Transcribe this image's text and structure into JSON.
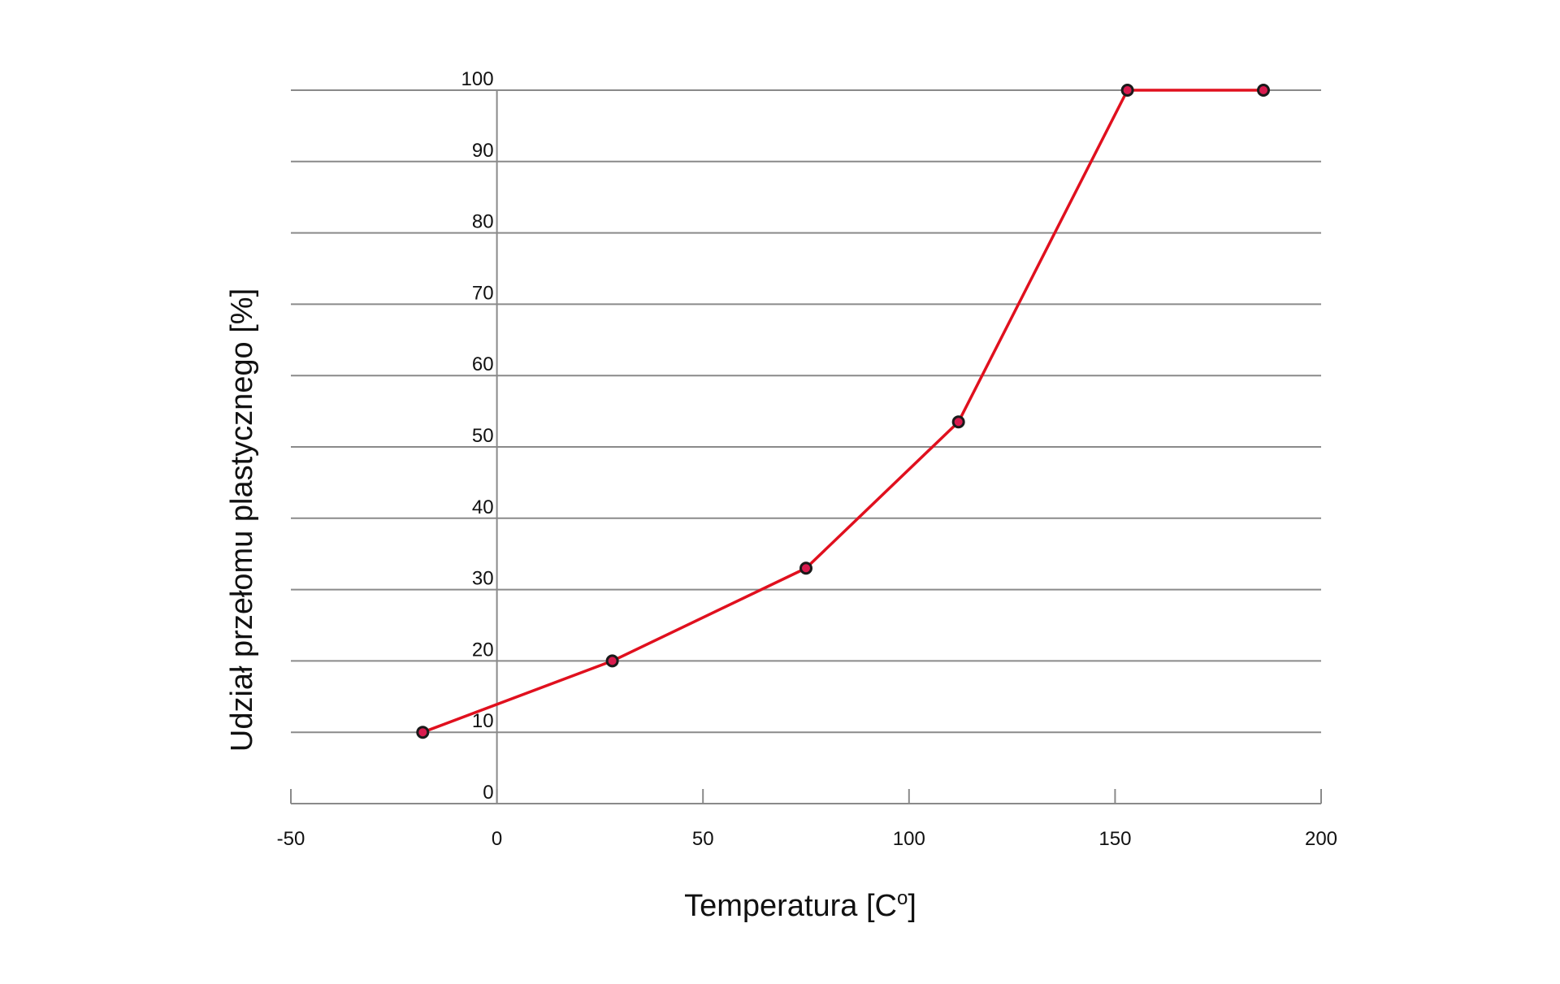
{
  "chart_data": {
    "type": "line",
    "title": "",
    "xlabel": "Temperatura [C",
    "xlabel_sup": "o",
    "xlabel_close": "]",
    "ylabel": "Udział przełomu plastycznego [%]",
    "xlim": [
      -50,
      200
    ],
    "ylim": [
      0,
      100
    ],
    "x_ticks": [
      -50,
      0,
      50,
      100,
      150,
      200
    ],
    "x_tick_labels": [
      "-50",
      "0",
      "50",
      "100",
      "150",
      "200"
    ],
    "y_ticks": [
      0,
      10,
      20,
      30,
      40,
      50,
      60,
      70,
      80,
      90,
      100
    ],
    "y_tick_labels": [
      "0",
      "10",
      "20",
      "30",
      "40",
      "50",
      "60",
      "70",
      "80",
      "90",
      "100"
    ],
    "grid": "horizontal",
    "series": [
      {
        "name": "Udział przełomu plastycznego",
        "x": [
          -18,
          28,
          75,
          112,
          153,
          186
        ],
        "y": [
          10,
          20,
          33,
          53.5,
          100,
          100
        ]
      }
    ],
    "colors": {
      "line": "#e0101e",
      "marker_fill": "#d81b4e",
      "marker_stroke": "#1a1a1a",
      "grid": "#8a8a8a",
      "axis": "#8a8a8a"
    }
  }
}
